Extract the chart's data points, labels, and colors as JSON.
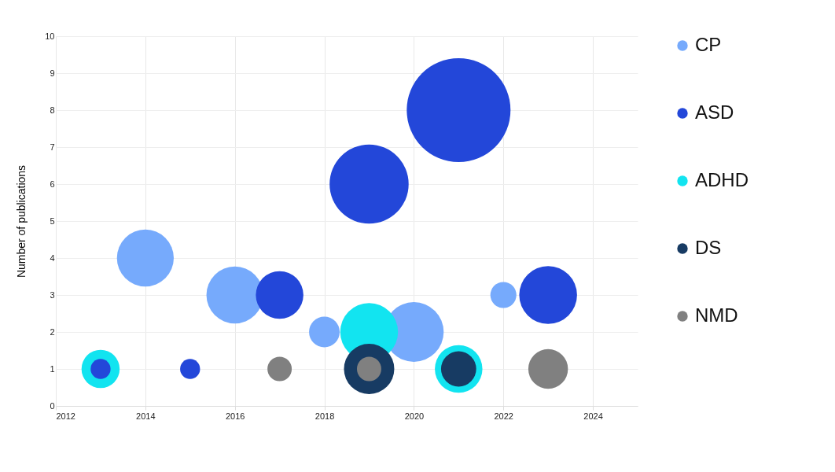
{
  "chart_data": {
    "type": "bubble",
    "ylabel": "Number of publications",
    "xlim": [
      2012,
      2025
    ],
    "xticks": [
      2012,
      2014,
      2016,
      2018,
      2020,
      2022,
      2024
    ],
    "ylim": [
      0,
      10
    ],
    "yticks": [
      0,
      1,
      2,
      3,
      4,
      5,
      6,
      7,
      8,
      9,
      10
    ],
    "grid": true,
    "legend": "right",
    "series": [
      {
        "name": "CP",
        "color": "#76aafc",
        "x": [
          2014,
          2016,
          2018,
          2020,
          2022
        ],
        "values": [
          4,
          3,
          2,
          2,
          3
        ],
        "sizes": [
          0.3,
          0.3,
          0.087,
          0.33,
          0.063
        ]
      },
      {
        "name": "ASD",
        "color": "#2347d9",
        "x": [
          2013,
          2015,
          2017,
          2019,
          2021,
          2023
        ],
        "values": [
          1,
          1,
          3,
          6,
          8,
          3
        ],
        "sizes": [
          0.037,
          0.037,
          0.21,
          0.58,
          1,
          0.31
        ]
      },
      {
        "name": "ADHD",
        "color": "#12e4f0",
        "x": [
          2013,
          2019,
          2021
        ],
        "values": [
          1,
          2,
          1
        ],
        "sizes": [
          0.135,
          0.31,
          0.21
        ]
      },
      {
        "name": "DS",
        "color": "#173b63",
        "x": [
          2019,
          2021
        ],
        "values": [
          1,
          1
        ],
        "sizes": [
          0.235,
          0.115
        ]
      },
      {
        "name": "NMD",
        "color": "#808080",
        "x": [
          2017,
          2019,
          2023
        ],
        "values": [
          1,
          1,
          1
        ],
        "sizes": [
          0.055,
          0.055,
          0.146
        ]
      }
    ]
  }
}
